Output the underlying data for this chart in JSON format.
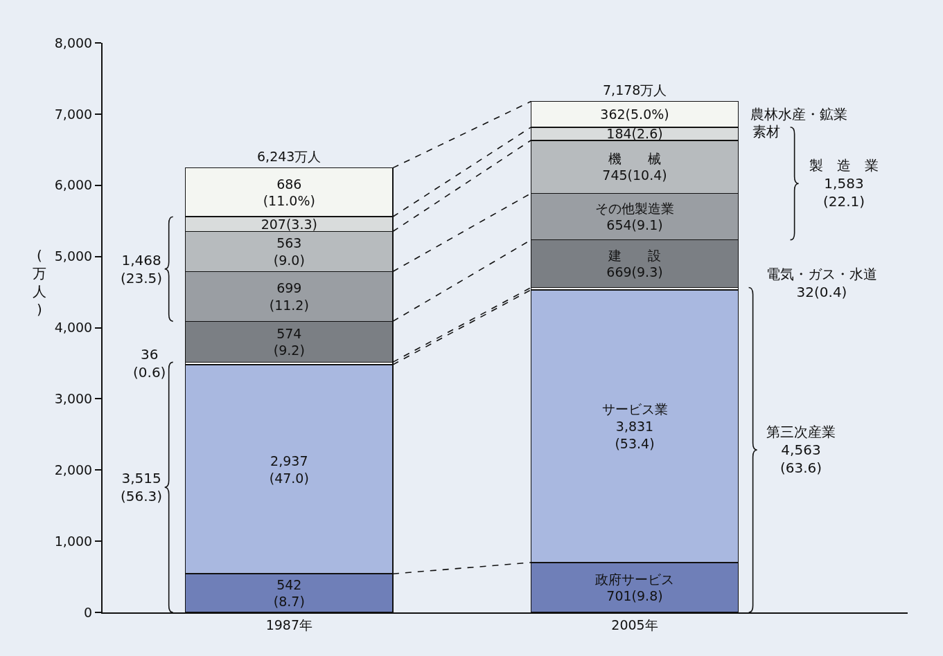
{
  "chart_data": {
    "type": "bar",
    "stacked": true,
    "categories": [
      "1987年",
      "2005年"
    ],
    "ylabel": "(万人)",
    "ylim": [
      0,
      8000
    ],
    "yticks": [
      0,
      {
        "value": 1000,
        "label": "1,000"
      },
      {
        "value": 2000,
        "label": "2,000"
      },
      {
        "value": 3000,
        "label": "3,000"
      },
      {
        "value": 4000,
        "label": "4,000"
      },
      {
        "value": 5000,
        "label": "5,000"
      },
      {
        "value": 6000,
        "label": "6,000"
      },
      {
        "value": 7000,
        "label": "7,000"
      },
      {
        "value": 8000,
        "label": "8,000"
      }
    ],
    "totals": [
      "6,243万人",
      "7,178万人"
    ],
    "series": [
      {
        "color": "#6f7fb8",
        "values": [
          542,
          701
        ],
        "value_labels": [
          "542\n(8.7)",
          "政府サービス\n701(9.8)"
        ]
      },
      {
        "color": "#a9b8e0",
        "values": [
          2937,
          3831
        ],
        "value_labels": [
          "2,937\n(47.0)",
          "サービス業\n3,831\n(53.4)"
        ]
      },
      {
        "color": "#ffffff",
        "values": [
          36,
          32
        ],
        "value_labels": [
          null,
          null
        ]
      },
      {
        "color": "#7b7f84",
        "values": [
          574,
          669
        ],
        "value_labels": [
          "574\n(9.2)",
          "建　　設\n669(9.3)"
        ]
      },
      {
        "color": "#9a9ea3",
        "values": [
          699,
          654
        ],
        "value_labels": [
          "699\n(11.2)",
          "その他製造業\n654(9.1)"
        ]
      },
      {
        "color": "#b7bbbe",
        "values": [
          563,
          745
        ],
        "value_labels": [
          "563\n(9.0)",
          "機　　械\n745(10.4)"
        ]
      },
      {
        "color": "#d9dcdc",
        "values": [
          207,
          184
        ],
        "value_labels": [
          "207(3.3)",
          "184(2.6)"
        ]
      },
      {
        "color": "#f4f6f2",
        "values": [
          686,
          362
        ],
        "value_labels": [
          "686\n(11.0%)",
          "362(5.0%)"
        ]
      }
    ],
    "annotations": [
      "1,468\n(23.5)",
      "36\n(0.6)",
      "3,515\n(56.3)",
      "農林水産・鉱業",
      "素材",
      "製　造　業\n1,583\n(22.1)",
      "電気・ガス・水道\n32(0.4)",
      "第三次産業\n4,563\n(63.6)"
    ]
  }
}
